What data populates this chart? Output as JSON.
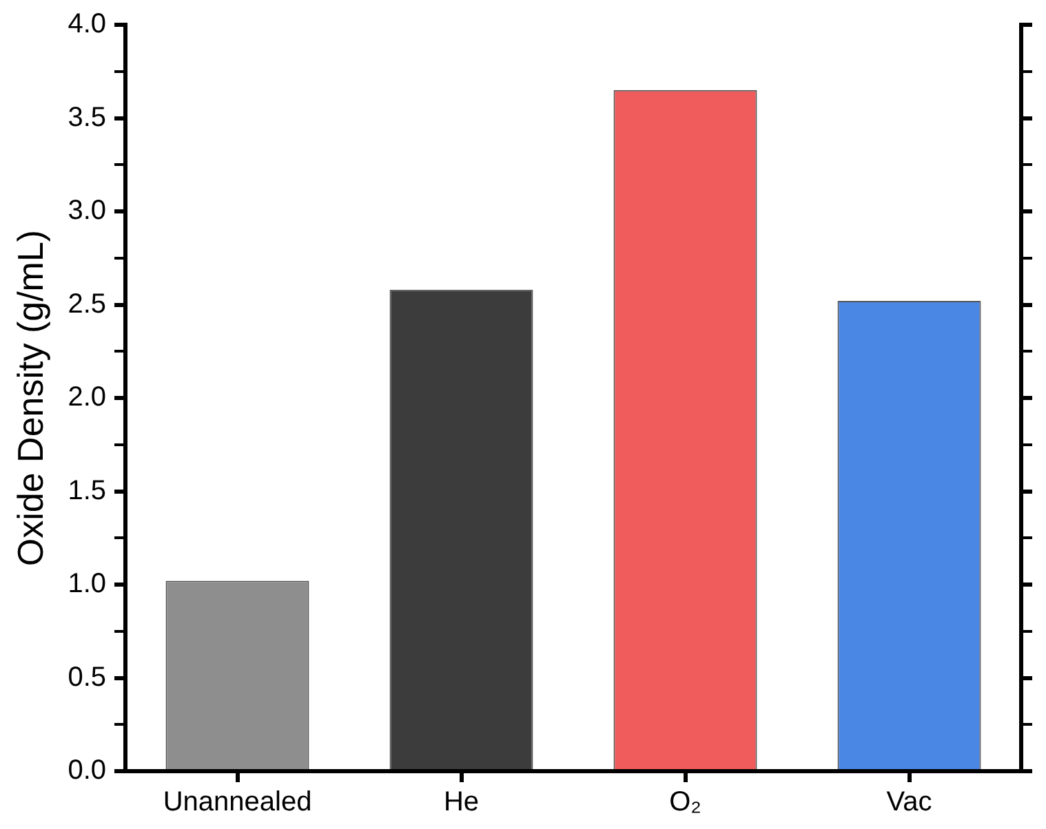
{
  "chart_data": {
    "type": "bar",
    "ylabel": "Oxide Density (g/mL)",
    "categories": [
      "Unannealed",
      "He",
      "O₂",
      "Vac"
    ],
    "values": [
      1.02,
      2.58,
      3.65,
      2.52
    ],
    "colors": [
      "#8e8e8e",
      "#3c3c3c",
      "#f05c5c",
      "#4a86e4"
    ],
    "ylim": [
      0,
      4
    ],
    "yticks": [
      {
        "value": 0,
        "label": "0.0"
      },
      {
        "value": 0.25,
        "label": null
      },
      {
        "value": 0.5,
        "label": "0.5"
      },
      {
        "value": 0.75,
        "label": null
      },
      {
        "value": 1,
        "label": "1.0"
      },
      {
        "value": 1.25,
        "label": null
      },
      {
        "value": 1.5,
        "label": "1.5"
      },
      {
        "value": 1.75,
        "label": null
      },
      {
        "value": 2,
        "label": "2.0"
      },
      {
        "value": 2.25,
        "label": null
      },
      {
        "value": 2.5,
        "label": "2.5"
      },
      {
        "value": 2.75,
        "label": null
      },
      {
        "value": 3,
        "label": "3.0"
      },
      {
        "value": 3.25,
        "label": null
      },
      {
        "value": 3.5,
        "label": "3.5"
      },
      {
        "value": 3.75,
        "label": null
      },
      {
        "value": 4,
        "label": "4.0"
      }
    ],
    "grid": false,
    "legend": false
  }
}
